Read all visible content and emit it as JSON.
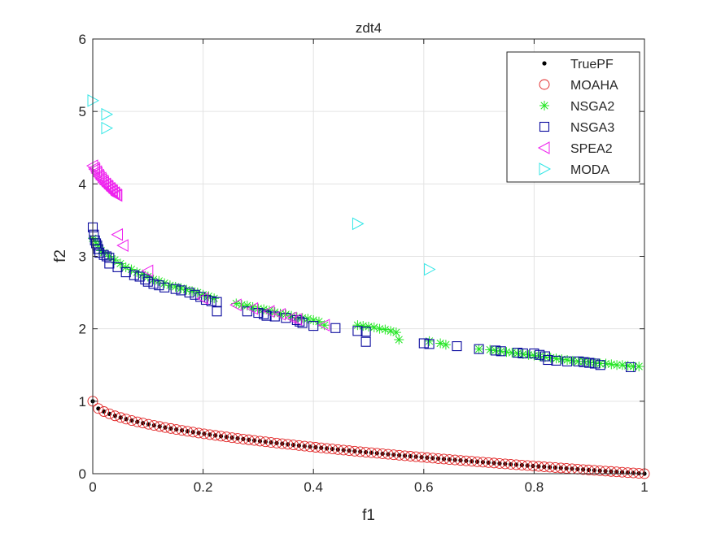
{
  "chart_data": {
    "type": "scatter",
    "title": "zdt4",
    "xlabel": "f1",
    "ylabel": "f2",
    "xlim": [
      0,
      1
    ],
    "ylim": [
      0,
      6
    ],
    "xticks": [
      0,
      0.2,
      0.4,
      0.6,
      0.8,
      1
    ],
    "xtick_labels": [
      "0",
      "0.2",
      "0.4",
      "0.6",
      "0.8",
      "1"
    ],
    "yticks": [
      0,
      1,
      2,
      3,
      4,
      5,
      6
    ],
    "ytick_labels": [
      "0",
      "1",
      "2",
      "3",
      "4",
      "5",
      "6"
    ],
    "grid": true,
    "legend_position": "top-right",
    "series": [
      {
        "name": "TruePF",
        "marker": "dot",
        "color": "#000000",
        "generator": "f2 = 1 - sqrt(f1)",
        "n_points": 100
      },
      {
        "name": "MOAHA",
        "marker": "circle",
        "color": "#e02020",
        "generator": "f2 = 1 - sqrt(f1)",
        "n_points": 100
      },
      {
        "name": "NSGA2",
        "marker": "asterisk",
        "color": "#22e622",
        "points": [
          [
            0.0,
            3.25
          ],
          [
            0.005,
            3.2
          ],
          [
            0.01,
            3.15
          ],
          [
            0.015,
            3.08
          ],
          [
            0.02,
            3.05
          ],
          [
            0.03,
            3.0
          ],
          [
            0.04,
            2.95
          ],
          [
            0.05,
            2.9
          ],
          [
            0.06,
            2.85
          ],
          [
            0.07,
            2.82
          ],
          [
            0.08,
            2.78
          ],
          [
            0.09,
            2.75
          ],
          [
            0.1,
            2.72
          ],
          [
            0.11,
            2.68
          ],
          [
            0.12,
            2.66
          ],
          [
            0.13,
            2.63
          ],
          [
            0.14,
            2.6
          ],
          [
            0.15,
            2.58
          ],
          [
            0.16,
            2.56
          ],
          [
            0.17,
            2.54
          ],
          [
            0.18,
            2.52
          ],
          [
            0.19,
            2.5
          ],
          [
            0.2,
            2.47
          ],
          [
            0.21,
            2.45
          ],
          [
            0.22,
            2.42
          ],
          [
            0.26,
            2.35
          ],
          [
            0.27,
            2.33
          ],
          [
            0.28,
            2.32
          ],
          [
            0.29,
            2.3
          ],
          [
            0.3,
            2.28
          ],
          [
            0.31,
            2.27
          ],
          [
            0.32,
            2.25
          ],
          [
            0.33,
            2.23
          ],
          [
            0.34,
            2.21
          ],
          [
            0.35,
            2.2
          ],
          [
            0.36,
            2.18
          ],
          [
            0.37,
            2.16
          ],
          [
            0.38,
            2.15
          ],
          [
            0.39,
            2.14
          ],
          [
            0.4,
            2.12
          ],
          [
            0.41,
            2.1
          ],
          [
            0.42,
            2.05
          ],
          [
            0.48,
            2.05
          ],
          [
            0.49,
            2.04
          ],
          [
            0.5,
            2.03
          ],
          [
            0.51,
            2.02
          ],
          [
            0.52,
            2.0
          ],
          [
            0.53,
            1.99
          ],
          [
            0.54,
            1.97
          ],
          [
            0.55,
            1.95
          ],
          [
            0.555,
            1.85
          ],
          [
            0.61,
            1.83
          ],
          [
            0.63,
            1.8
          ],
          [
            0.64,
            1.78
          ],
          [
            0.7,
            1.72
          ],
          [
            0.72,
            1.71
          ],
          [
            0.73,
            1.7
          ],
          [
            0.74,
            1.69
          ],
          [
            0.75,
            1.68
          ],
          [
            0.76,
            1.67
          ],
          [
            0.77,
            1.66
          ],
          [
            0.78,
            1.65
          ],
          [
            0.79,
            1.64
          ],
          [
            0.8,
            1.63
          ],
          [
            0.81,
            1.62
          ],
          [
            0.82,
            1.61
          ],
          [
            0.83,
            1.6
          ],
          [
            0.84,
            1.59
          ],
          [
            0.85,
            1.58
          ],
          [
            0.86,
            1.57
          ],
          [
            0.87,
            1.56
          ],
          [
            0.88,
            1.55
          ],
          [
            0.89,
            1.55
          ],
          [
            0.9,
            1.54
          ],
          [
            0.91,
            1.53
          ],
          [
            0.92,
            1.52
          ],
          [
            0.93,
            1.52
          ],
          [
            0.94,
            1.51
          ],
          [
            0.95,
            1.5
          ],
          [
            0.96,
            1.5
          ],
          [
            0.97,
            1.49
          ],
          [
            0.98,
            1.48
          ],
          [
            0.99,
            1.48
          ]
        ]
      },
      {
        "name": "NSGA3",
        "marker": "square",
        "color": "#0a0a9e",
        "points": [
          [
            0.0,
            3.4
          ],
          [
            0.002,
            3.3
          ],
          [
            0.004,
            3.22
          ],
          [
            0.006,
            3.18
          ],
          [
            0.008,
            3.15
          ],
          [
            0.01,
            3.1
          ],
          [
            0.012,
            3.05
          ],
          [
            0.02,
            3.02
          ],
          [
            0.025,
            3.0
          ],
          [
            0.03,
            2.98
          ],
          [
            0.03,
            2.9
          ],
          [
            0.045,
            2.85
          ],
          [
            0.06,
            2.78
          ],
          [
            0.075,
            2.74
          ],
          [
            0.085,
            2.72
          ],
          [
            0.095,
            2.68
          ],
          [
            0.1,
            2.65
          ],
          [
            0.11,
            2.62
          ],
          [
            0.12,
            2.6
          ],
          [
            0.13,
            2.57
          ],
          [
            0.15,
            2.55
          ],
          [
            0.16,
            2.53
          ],
          [
            0.175,
            2.5
          ],
          [
            0.185,
            2.47
          ],
          [
            0.195,
            2.44
          ],
          [
            0.205,
            2.4
          ],
          [
            0.215,
            2.38
          ],
          [
            0.225,
            2.37
          ],
          [
            0.225,
            2.24
          ],
          [
            0.28,
            2.24
          ],
          [
            0.3,
            2.22
          ],
          [
            0.31,
            2.2
          ],
          [
            0.315,
            2.18
          ],
          [
            0.33,
            2.17
          ],
          [
            0.35,
            2.15
          ],
          [
            0.37,
            2.12
          ],
          [
            0.375,
            2.1
          ],
          [
            0.38,
            2.08
          ],
          [
            0.4,
            2.04
          ],
          [
            0.44,
            2.01
          ],
          [
            0.48,
            1.97
          ],
          [
            0.495,
            1.96
          ],
          [
            0.495,
            1.82
          ],
          [
            0.6,
            1.8
          ],
          [
            0.61,
            1.79
          ],
          [
            0.66,
            1.76
          ],
          [
            0.7,
            1.72
          ],
          [
            0.73,
            1.7
          ],
          [
            0.74,
            1.69
          ],
          [
            0.77,
            1.67
          ],
          [
            0.78,
            1.66
          ],
          [
            0.8,
            1.66
          ],
          [
            0.81,
            1.64
          ],
          [
            0.82,
            1.62
          ],
          [
            0.825,
            1.57
          ],
          [
            0.84,
            1.56
          ],
          [
            0.86,
            1.55
          ],
          [
            0.88,
            1.55
          ],
          [
            0.89,
            1.54
          ],
          [
            0.9,
            1.53
          ],
          [
            0.91,
            1.52
          ],
          [
            0.92,
            1.5
          ],
          [
            0.975,
            1.47
          ]
        ]
      },
      {
        "name": "SPEA2",
        "marker": "triangle-left",
        "color": "#ee22ee",
        "points": [
          [
            0.0,
            4.25
          ],
          [
            0.004,
            4.2
          ],
          [
            0.008,
            4.15
          ],
          [
            0.012,
            4.1
          ],
          [
            0.016,
            4.06
          ],
          [
            0.02,
            4.02
          ],
          [
            0.024,
            3.99
          ],
          [
            0.028,
            3.96
          ],
          [
            0.032,
            3.93
          ],
          [
            0.036,
            3.9
          ],
          [
            0.04,
            3.87
          ],
          [
            0.044,
            3.84
          ],
          [
            0.003,
            4.22
          ],
          [
            0.007,
            4.17
          ],
          [
            0.011,
            4.12
          ],
          [
            0.015,
            4.08
          ],
          [
            0.019,
            4.04
          ],
          [
            0.023,
            4.0
          ],
          [
            0.027,
            3.97
          ],
          [
            0.031,
            3.94
          ],
          [
            0.035,
            3.91
          ],
          [
            0.039,
            3.88
          ],
          [
            0.043,
            3.85
          ],
          [
            0.045,
            3.3
          ],
          [
            0.055,
            3.15
          ],
          [
            0.1,
            2.8
          ],
          [
            0.2,
            2.42
          ],
          [
            0.26,
            2.33
          ],
          [
            0.29,
            2.28
          ],
          [
            0.32,
            2.24
          ],
          [
            0.34,
            2.2
          ],
          [
            0.36,
            2.15
          ],
          [
            0.37,
            2.13
          ],
          [
            0.42,
            2.05
          ]
        ]
      },
      {
        "name": "MODA",
        "marker": "triangle-right",
        "color": "#33e6e6",
        "points": [
          [
            0.0,
            5.15
          ],
          [
            0.025,
            4.96
          ],
          [
            0.025,
            4.77
          ],
          [
            0.48,
            3.45
          ],
          [
            0.61,
            2.82
          ]
        ]
      }
    ]
  }
}
